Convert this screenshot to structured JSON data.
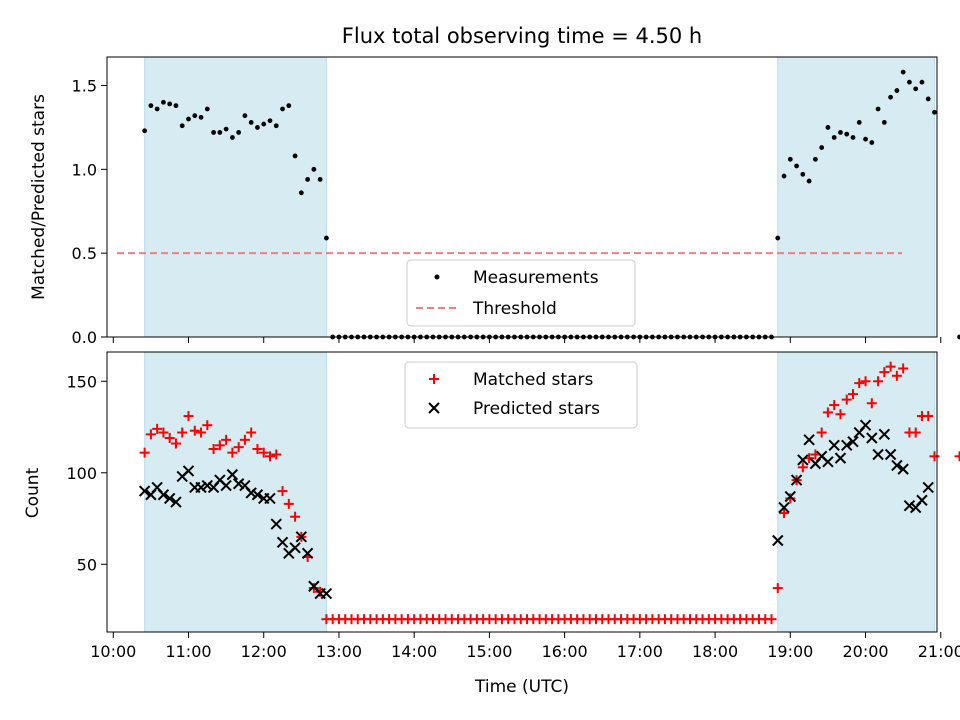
{
  "chart_data": [
    {
      "type": "scatter",
      "title": "Flux total observing time = 4.50 h",
      "xlabel": "",
      "ylabel": "Matched/Predicted stars",
      "ylim": [
        0,
        1.67
      ],
      "xlim": [
        "09:55",
        "20:57"
      ],
      "yticks": [
        "0.0",
        "0.5",
        "1.0",
        "1.5"
      ],
      "shaded_intervals": [
        [
          "10:25",
          "12:50"
        ],
        [
          "18:50",
          "20:55"
        ]
      ],
      "shade_color": "#add8e6",
      "legend_placement": "lower-center",
      "series": [
        {
          "name": "Measurements",
          "marker": "dot",
          "color": "#000000",
          "x": [
            "10:25",
            "10:30",
            "10:35",
            "10:40",
            "10:45",
            "10:50",
            "10:55",
            "11:00",
            "11:05",
            "11:10",
            "11:15",
            "11:20",
            "11:25",
            "11:30",
            "11:35",
            "11:40",
            "11:45",
            "11:50",
            "11:55",
            "12:00",
            "12:05",
            "12:10",
            "12:15",
            "12:20",
            "12:25",
            "12:30",
            "12:35",
            "12:40",
            "12:45",
            "12:50",
            "12:55",
            "13:00",
            "13:05",
            "13:10",
            "13:15",
            "13:20",
            "13:25",
            "13:30",
            "13:35",
            "13:40",
            "13:45",
            "13:50",
            "13:55",
            "14:00",
            "14:05",
            "14:10",
            "14:15",
            "14:20",
            "14:25",
            "14:30",
            "14:35",
            "14:40",
            "14:45",
            "14:50",
            "14:55",
            "15:00",
            "15:05",
            "15:10",
            "15:15",
            "15:20",
            "15:25",
            "15:30",
            "15:35",
            "15:40",
            "15:45",
            "15:50",
            "15:55",
            "16:00",
            "16:05",
            "16:10",
            "16:15",
            "16:20",
            "16:25",
            "16:30",
            "16:35",
            "16:40",
            "16:45",
            "16:50",
            "16:55",
            "17:00",
            "17:05",
            "17:10",
            "17:15",
            "17:20",
            "17:25",
            "17:30",
            "17:35",
            "17:40",
            "17:45",
            "17:50",
            "17:55",
            "18:00",
            "18:05",
            "18:10",
            "18:15",
            "18:20",
            "18:25",
            "18:30",
            "18:35",
            "18:40",
            "18:45",
            "18:50",
            "18:55",
            "19:00",
            "19:05",
            "19:10",
            "19:15",
            "19:20",
            "19:25",
            "19:30",
            "19:35",
            "19:40",
            "19:45",
            "19:50",
            "19:55",
            "20:00",
            "20:05",
            "20:10",
            "20:15",
            "20:20",
            "20:25",
            "20:30",
            "20:35",
            "20:40",
            "20:45",
            "20:50",
            "20:55",
            "21:15"
          ],
          "y": [
            1.23,
            1.38,
            1.36,
            1.4,
            1.39,
            1.38,
            1.26,
            1.3,
            1.32,
            1.31,
            1.36,
            1.22,
            1.22,
            1.24,
            1.19,
            1.22,
            1.32,
            1.28,
            1.25,
            1.27,
            1.29,
            1.26,
            1.36,
            1.38,
            1.08,
            0.86,
            0.94,
            1.0,
            0.94,
            0.59,
            0,
            0,
            0,
            0,
            0,
            0,
            0,
            0,
            0,
            0,
            0,
            0,
            0,
            0,
            0,
            0,
            0,
            0,
            0,
            0,
            0,
            0,
            0,
            0,
            0,
            0,
            0,
            0,
            0,
            0,
            0,
            0,
            0,
            0,
            0,
            0,
            0,
            0,
            0,
            0,
            0,
            0,
            0,
            0,
            0,
            0,
            0,
            0,
            0,
            0,
            0,
            0,
            0,
            0,
            0,
            0,
            0,
            0,
            0,
            0,
            0,
            0,
            0,
            0,
            0,
            0,
            0,
            0,
            0,
            0,
            0,
            0.59,
            0.96,
            1.06,
            1.02,
            0.97,
            0.93,
            1.06,
            1.13,
            1.25,
            1.19,
            1.22,
            1.21,
            1.19,
            1.28,
            1.18,
            1.16,
            1.36,
            1.28,
            1.43,
            1.47,
            1.58,
            1.52,
            1.48,
            1.52,
            1.42,
            1.34,
            0
          ]
        },
        {
          "name": "Threshold",
          "marker": "dashed-line",
          "color": "#f08080",
          "y": 0.5
        }
      ]
    },
    {
      "type": "scatter",
      "title": "",
      "xlabel": "Time (UTC)",
      "ylabel": "Count",
      "ylim": [
        13,
        166
      ],
      "xlim": [
        "09:55",
        "20:57"
      ],
      "yticks": [
        "50",
        "100",
        "150"
      ],
      "xticks": [
        "10:00",
        "11:00",
        "12:00",
        "13:00",
        "14:00",
        "15:00",
        "16:00",
        "17:00",
        "18:00",
        "19:00",
        "20:00",
        "21:00"
      ],
      "shaded_intervals": [
        [
          "10:25",
          "12:50"
        ],
        [
          "18:50",
          "20:55"
        ]
      ],
      "shade_color": "#add8e6",
      "legend_placement": "upper-center",
      "series": [
        {
          "name": "Matched stars",
          "marker": "plus",
          "color": "#ff0000",
          "x": [
            "10:25",
            "10:30",
            "10:35",
            "10:40",
            "10:45",
            "10:50",
            "10:55",
            "11:00",
            "11:05",
            "11:10",
            "11:15",
            "11:20",
            "11:25",
            "11:30",
            "11:35",
            "11:40",
            "11:45",
            "11:50",
            "11:55",
            "12:00",
            "12:05",
            "12:10",
            "12:15",
            "12:20",
            "12:25",
            "12:30",
            "12:35",
            "12:40",
            "12:45",
            "12:50",
            "12:55",
            "13:00",
            "13:05",
            "13:10",
            "13:15",
            "13:20",
            "13:25",
            "13:30",
            "13:35",
            "13:40",
            "13:45",
            "13:50",
            "13:55",
            "14:00",
            "14:05",
            "14:10",
            "14:15",
            "14:20",
            "14:25",
            "14:30",
            "14:35",
            "14:40",
            "14:45",
            "14:50",
            "14:55",
            "15:00",
            "15:05",
            "15:10",
            "15:15",
            "15:20",
            "15:25",
            "15:30",
            "15:35",
            "15:40",
            "15:45",
            "15:50",
            "15:55",
            "16:00",
            "16:05",
            "16:10",
            "16:15",
            "16:20",
            "16:25",
            "16:30",
            "16:35",
            "16:40",
            "16:45",
            "16:50",
            "16:55",
            "17:00",
            "17:05",
            "17:10",
            "17:15",
            "17:20",
            "17:25",
            "17:30",
            "17:35",
            "17:40",
            "17:45",
            "17:50",
            "17:55",
            "18:00",
            "18:05",
            "18:10",
            "18:15",
            "18:20",
            "18:25",
            "18:30",
            "18:35",
            "18:40",
            "18:45",
            "18:50",
            "18:55",
            "19:00",
            "19:05",
            "19:10",
            "19:15",
            "19:20",
            "19:25",
            "19:30",
            "19:35",
            "19:40",
            "19:45",
            "19:50",
            "19:55",
            "20:00",
            "20:05",
            "20:10",
            "20:15",
            "20:20",
            "20:25",
            "20:30",
            "20:35",
            "20:40",
            "20:45",
            "20:50",
            "20:55",
            "21:15"
          ],
          "y": [
            111,
            121,
            124,
            122,
            119,
            116,
            122,
            131,
            123,
            122,
            126,
            113,
            115,
            118,
            111,
            114,
            118,
            122,
            113,
            111,
            109,
            110,
            90,
            83,
            76,
            65,
            54,
            37,
            35,
            20,
            20,
            20,
            20,
            20,
            20,
            20,
            20,
            20,
            20,
            20,
            20,
            20,
            20,
            20,
            20,
            20,
            20,
            20,
            20,
            20,
            20,
            20,
            20,
            20,
            20,
            20,
            20,
            20,
            20,
            20,
            20,
            20,
            20,
            20,
            20,
            20,
            20,
            20,
            20,
            20,
            20,
            20,
            20,
            20,
            20,
            20,
            20,
            20,
            20,
            20,
            20,
            20,
            20,
            20,
            20,
            20,
            20,
            20,
            20,
            20,
            20,
            20,
            20,
            20,
            20,
            20,
            20,
            20,
            20,
            20,
            20,
            37,
            78,
            86,
            96,
            103,
            108,
            110,
            122,
            133,
            137,
            132,
            140,
            143,
            149,
            150,
            138,
            150,
            155,
            158,
            153,
            157,
            122,
            122,
            131,
            131,
            109,
            109
          ]
        },
        {
          "name": "Predicted stars",
          "marker": "x",
          "color": "#000000",
          "x": [
            "10:25",
            "10:30",
            "10:35",
            "10:40",
            "10:45",
            "10:50",
            "10:55",
            "11:00",
            "11:05",
            "11:10",
            "11:15",
            "11:20",
            "11:25",
            "11:30",
            "11:35",
            "11:40",
            "11:45",
            "11:50",
            "11:55",
            "12:00",
            "12:05",
            "12:10",
            "12:15",
            "12:20",
            "12:25",
            "12:30",
            "12:35",
            "12:40",
            "12:45",
            "12:50",
            "18:50",
            "18:55",
            "19:00",
            "19:05",
            "19:10",
            "19:15",
            "19:20",
            "19:25",
            "19:30",
            "19:35",
            "19:40",
            "19:45",
            "19:50",
            "19:55",
            "20:00",
            "20:05",
            "20:10",
            "20:15",
            "20:20",
            "20:25",
            "20:30",
            "20:35",
            "20:40",
            "20:45",
            "20:50"
          ],
          "y": [
            90,
            88,
            92,
            88,
            86,
            84,
            98,
            101,
            92,
            92,
            93,
            92,
            96,
            93,
            99,
            94,
            93,
            89,
            88,
            86,
            86,
            72,
            62,
            56,
            59,
            65,
            56,
            38,
            34,
            34,
            63,
            81,
            87,
            96,
            107,
            118,
            105,
            109,
            106,
            115,
            108,
            115,
            117,
            122,
            126,
            119,
            110,
            121,
            110,
            104,
            102,
            82,
            81,
            85,
            92
          ]
        }
      ]
    }
  ]
}
